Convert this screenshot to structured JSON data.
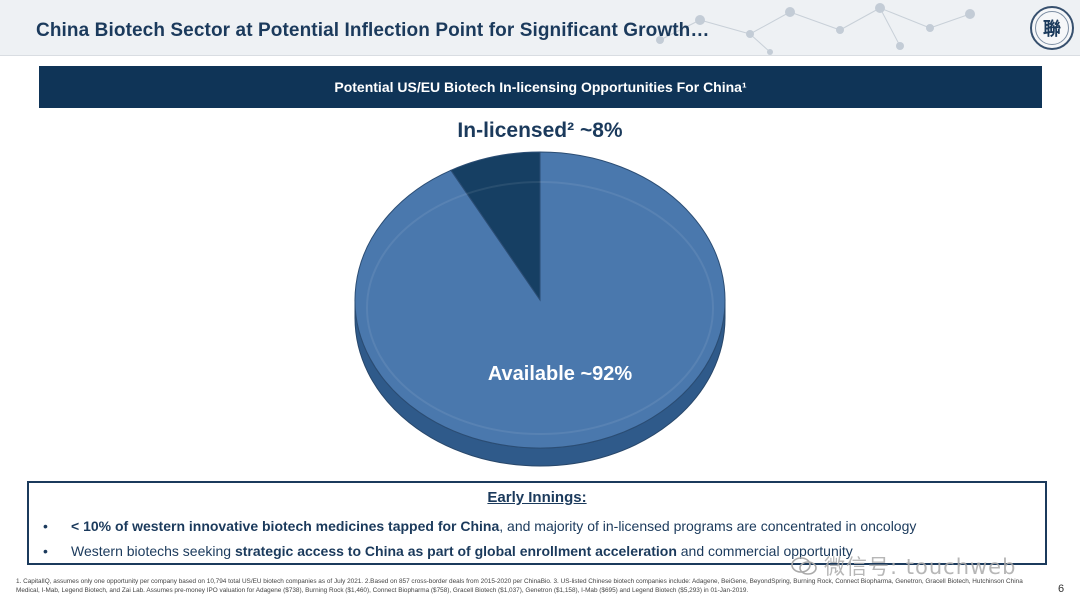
{
  "header": {
    "title": "China Biotech Sector at Potential Inflection Point for Significant Growth…",
    "seal_text": "聯"
  },
  "banner": {
    "text": "Potential US/EU Biotech In-licensing Opportunities For China¹"
  },
  "chart_data": {
    "type": "pie",
    "categories": [
      "In-licensed²",
      "Available"
    ],
    "values": [
      8,
      92
    ],
    "labels": [
      "In-licensed²  ~8%",
      "Available  ~92%"
    ],
    "colors": [
      "#163f63",
      "#4a78ad"
    ],
    "style": "3d"
  },
  "innings": {
    "heading": "Early Innings:",
    "bullets": [
      {
        "bold": "< 10% of western innovative biotech medicines tapped for China",
        "rest": ", and majority of in-licensed programs are concentrated in oncology"
      },
      {
        "pre": "Western biotechs seeking ",
        "bold": "strategic access to China as part of global enrollment acceleration",
        "rest": " and commercial opportunity"
      }
    ]
  },
  "footnote": "1. CapitalIQ, assumes only one opportunity per company based on 10,794 total US/EU biotech companies as of July 2021. 2.Based on 857 cross-border deals from 2015-2020 per ChinaBio. 3. US-listed Chinese biotech companies include: Adagene, BeiGene, BeyondSpring, Burning Rock, Connect Biopharma, Genetron, Gracell Biotech, Hutchinson China Medical, I-Mab, Legend Biotech, and Zai Lab. Assumes pre-money IPO valuation for Adagene ($738), Burning Rock ($1,460), Connect Biopharma ($758), Gracell Biotech ($1,037), Genetron ($1,158), I-Mab ($695) and Legend Biotech ($5,293) in 01-Jan-2019.",
  "page_number": "6",
  "watermark": "微信号: touchweb"
}
